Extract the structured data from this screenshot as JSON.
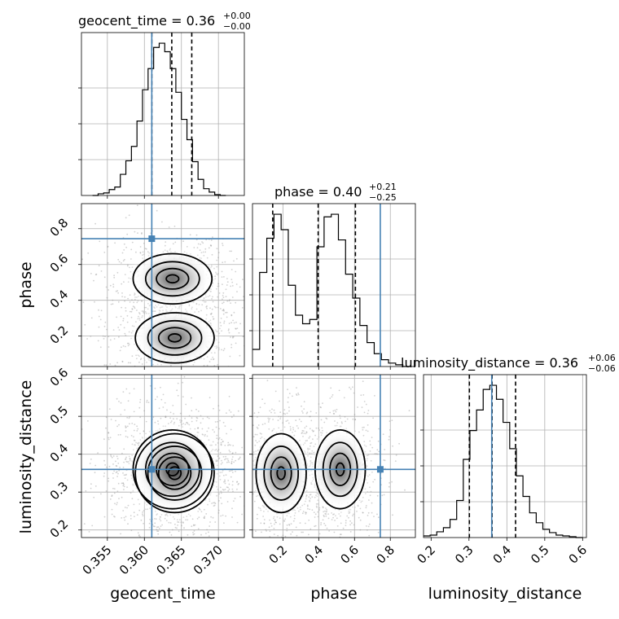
{
  "chart_data": {
    "type": "corner",
    "parameters": [
      {
        "name": "geocent_time",
        "label": "geocent_time",
        "title": {
          "main": "geocent_time = 0.36",
          "plus": "+0.00",
          "minus": "−0.00"
        },
        "range": [
          0.3515,
          0.3735
        ],
        "ticks": [
          {
            "value": 0.355,
            "label": "0.355"
          },
          {
            "value": 0.36,
            "label": "0.360"
          },
          {
            "value": 0.365,
            "label": "0.365"
          },
          {
            "value": 0.37,
            "label": "0.370"
          }
        ],
        "truth": 0.361,
        "quantiles": [
          0.361,
          0.3637,
          0.3664
        ],
        "hist": {
          "start": 0.353,
          "bin": 0.00075,
          "counts": [
            0,
            2,
            3,
            7,
            10,
            25,
            41,
            58,
            88,
            125,
            150,
            175,
            180,
            170,
            150,
            122,
            90,
            66,
            40,
            19,
            8,
            4,
            1,
            0
          ]
        }
      },
      {
        "name": "phase",
        "label": "phase",
        "title": {
          "main": "phase = 0.40",
          "plus": "+0.21",
          "minus": "−0.25"
        },
        "range": [
          0.03,
          0.94
        ],
        "ticks": [
          {
            "value": 0.2,
            "label": "0.2"
          },
          {
            "value": 0.4,
            "label": "0.4"
          },
          {
            "value": 0.6,
            "label": "0.6"
          },
          {
            "value": 0.8,
            "label": "0.8"
          }
        ],
        "truth": 0.744,
        "quantiles": [
          0.143,
          0.397,
          0.605
        ],
        "hist": {
          "start": 0.03,
          "bin": 0.04,
          "counts": [
            20,
            110,
            150,
            178,
            160,
            95,
            60,
            50,
            55,
            140,
            175,
            178,
            148,
            108,
            80,
            48,
            28,
            15,
            8,
            4,
            2,
            0
          ]
        }
      },
      {
        "name": "luminosity_distance",
        "label": "luminosity_distance",
        "title": {
          "main": "luminosity_distance = 0.36",
          "plus": "+0.06",
          "minus": "−0.06"
        },
        "range": [
          0.18,
          0.61
        ],
        "ticks": [
          {
            "value": 0.2,
            "label": "0.2"
          },
          {
            "value": 0.3,
            "label": "0.3"
          },
          {
            "value": 0.4,
            "label": "0.4"
          },
          {
            "value": 0.5,
            "label": "0.5"
          },
          {
            "value": 0.6,
            "label": "0.6"
          }
        ],
        "truth": 0.36,
        "quantiles": [
          0.301,
          0.361,
          0.423
        ],
        "hist": {
          "start": 0.18,
          "bin": 0.0175,
          "counts": [
            2,
            3,
            7,
            12,
            22,
            45,
            95,
            130,
            155,
            180,
            185,
            168,
            140,
            108,
            75,
            50,
            30,
            18,
            10,
            6,
            3,
            2,
            1,
            0
          ]
        }
      }
    ],
    "modes": [
      {
        "x": 0.3638,
        "phase": 0.52,
        "dist": 0.36
      },
      {
        "x": 0.3641,
        "phase": 0.19,
        "dist": 0.35
      }
    ],
    "grid": true,
    "colors": {
      "truth": "#4682b4",
      "ink": "#000000",
      "grid": "#b0b0b0"
    }
  }
}
